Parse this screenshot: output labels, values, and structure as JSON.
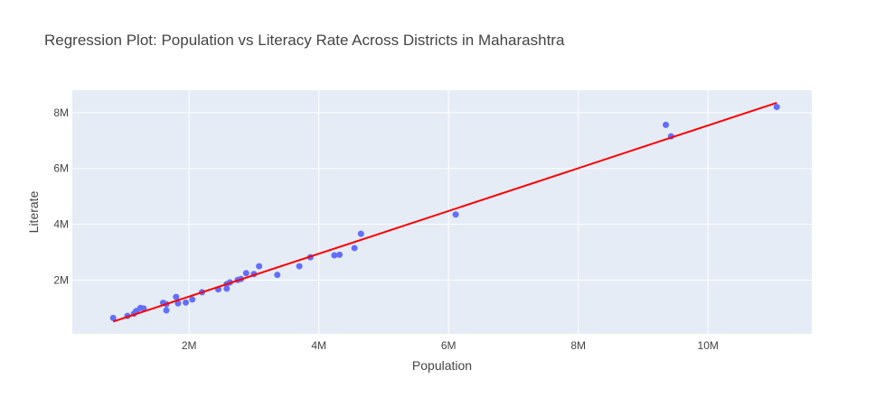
{
  "chart_data": {
    "type": "scatter",
    "title": "Regression Plot: Population vs Literacy Rate Across Districts in Maharashtra",
    "xlabel": "Population",
    "ylabel": "Literate",
    "xlim": [
      200000,
      11600000
    ],
    "ylim": [
      80000,
      8800000
    ],
    "x_ticks": [
      2000000,
      4000000,
      6000000,
      8000000,
      10000000
    ],
    "x_tick_labels": [
      "2M",
      "4M",
      "6M",
      "8M",
      "10M"
    ],
    "y_ticks": [
      2000000,
      4000000,
      6000000,
      8000000
    ],
    "y_tick_labels": [
      "2M",
      "4M",
      "6M",
      "8M"
    ],
    "grid": true,
    "colors": {
      "points": "#636efa",
      "line": "#ff0000",
      "plot_bg": "#e5ecf6"
    },
    "series": [
      {
        "type": "scatter",
        "x": [
          830000,
          1050000,
          1150000,
          1180000,
          1190000,
          1250000,
          1300000,
          1600000,
          1650000,
          1650000,
          1800000,
          1830000,
          1950000,
          2050000,
          2200000,
          2450000,
          2580000,
          2580000,
          2630000,
          2750000,
          2800000,
          2880000,
          3000000,
          3080000,
          3360000,
          3700000,
          3870000,
          4240000,
          4320000,
          4550000,
          4650000,
          6110000,
          9350000,
          9430000,
          11060000
        ],
        "y": [
          650000,
          720000,
          800000,
          880000,
          900000,
          1010000,
          990000,
          1190000,
          1140000,
          920000,
          1400000,
          1170000,
          1200000,
          1310000,
          1570000,
          1670000,
          1700000,
          1860000,
          1920000,
          2010000,
          2040000,
          2250000,
          2220000,
          2500000,
          2190000,
          2500000,
          2820000,
          2890000,
          2910000,
          3150000,
          3660000,
          4350000,
          7560000,
          7150000,
          8200000
        ]
      },
      {
        "type": "line",
        "x": [
          830000,
          11060000
        ],
        "y": [
          520000,
          8350000
        ]
      }
    ]
  }
}
